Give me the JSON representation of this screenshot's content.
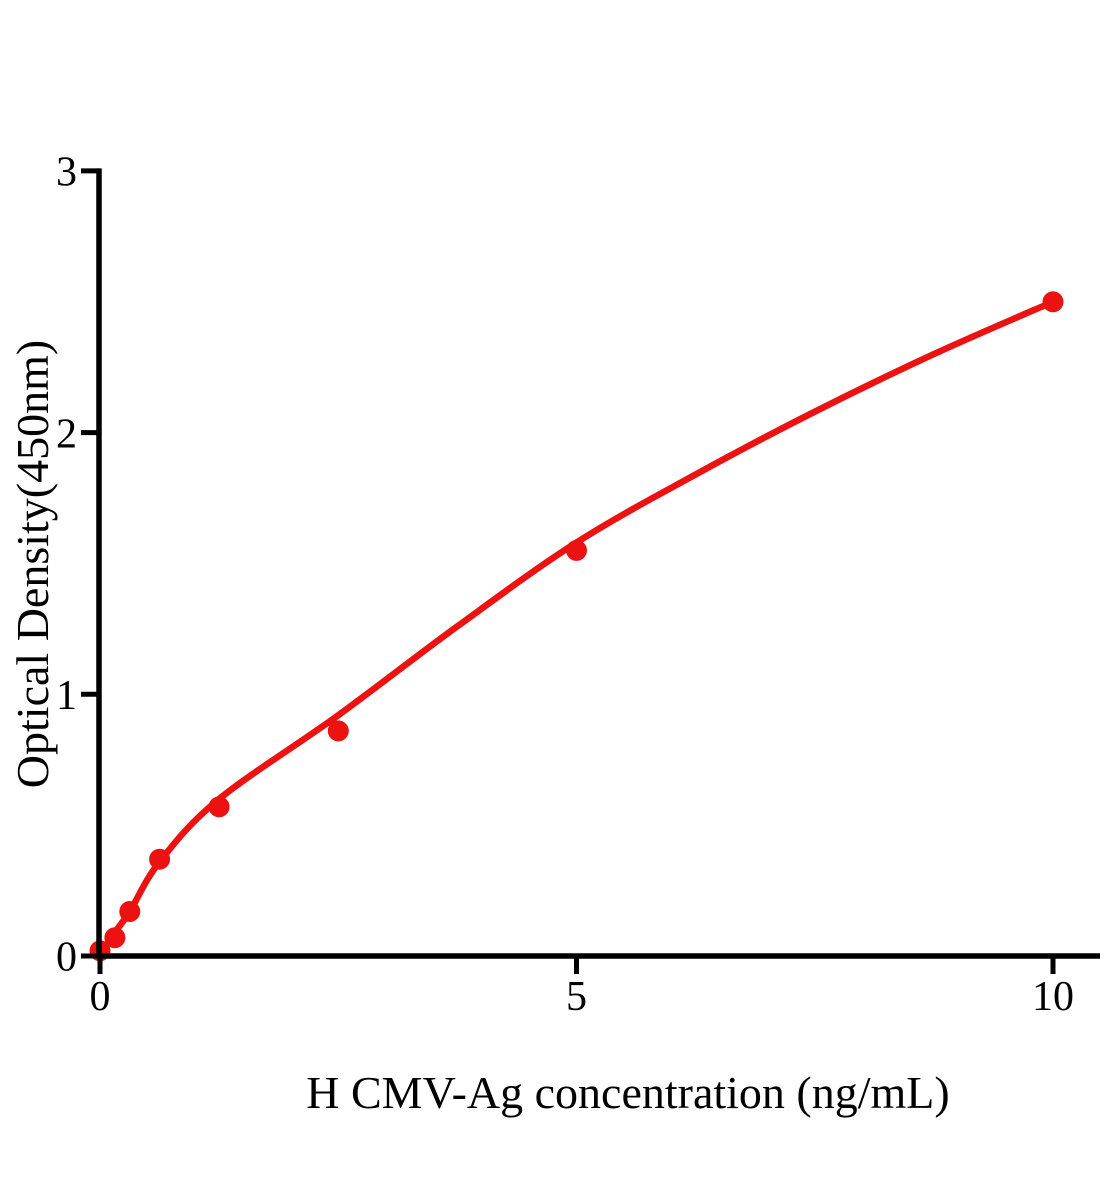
{
  "figure": {
    "background_color": "#ffffff",
    "text_color": "#000000"
  },
  "chart_data": {
    "type": "scatter",
    "subtype": "standard-curve-with-fitted-line",
    "title": "",
    "xlabel": "H CMV-Ag concentration (ng/mL)",
    "ylabel": "Optical Density(450nm)",
    "xlim": [
      0,
      10.5
    ],
    "ylim": [
      0,
      3
    ],
    "x_ticks": [
      0,
      5,
      10
    ],
    "y_ticks": [
      0,
      1,
      2,
      3
    ],
    "grid": false,
    "legend_position": "none",
    "axis_color": "#000000",
    "marker_color": "#EC1212",
    "curve_color": "#EC1212",
    "points": [
      {
        "x": 0,
        "y": 0.02
      },
      {
        "x": 0.156,
        "y": 0.07
      },
      {
        "x": 0.3125,
        "y": 0.17
      },
      {
        "x": 0.625,
        "y": 0.37
      },
      {
        "x": 1.25,
        "y": 0.57
      },
      {
        "x": 2.5,
        "y": 0.86
      },
      {
        "x": 5,
        "y": 1.55
      },
      {
        "x": 10,
        "y": 2.5
      }
    ],
    "fit_curve": [
      [
        0,
        0.0
      ],
      [
        0.156,
        0.09
      ],
      [
        0.3125,
        0.17
      ],
      [
        0.625,
        0.36
      ],
      [
        1.25,
        0.6
      ],
      [
        2.5,
        0.92
      ],
      [
        3.75,
        1.26
      ],
      [
        5,
        1.58
      ],
      [
        6.25,
        1.84
      ],
      [
        7.5,
        2.08
      ],
      [
        8.75,
        2.3
      ],
      [
        10,
        2.5
      ]
    ]
  }
}
